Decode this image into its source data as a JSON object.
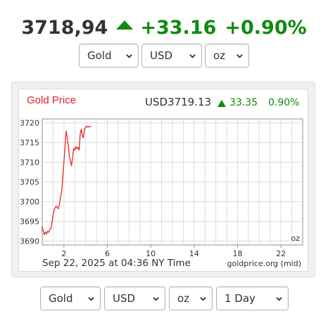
{
  "header": {
    "price": "3718,94",
    "change": "+33.16",
    "change_pct": "+0.90%",
    "direction_icon": "up-triangle-icon",
    "up_color": "#108a10"
  },
  "top_selectors": {
    "metal": "Gold",
    "currency": "USD",
    "unit": "oz"
  },
  "bottom_selectors": {
    "metal": "Gold",
    "currency": "USD",
    "unit": "oz",
    "range": "1 Day"
  },
  "chart_data": {
    "type": "line",
    "title": "Gold Price",
    "title_color": "#e02020",
    "quote": {
      "label": "USD3719.13",
      "change": "33.35",
      "change_pct": "0.90%"
    },
    "unit_label": "oz",
    "timestamp": "Sep 22, 2025 at 04:36 NY Time",
    "source": "goldprice.org (mid)",
    "line_color": "#e8282a",
    "grid": true,
    "xlim": [
      0,
      24
    ],
    "ylim": [
      3689,
      3721
    ],
    "x_ticks": [
      2,
      6,
      10,
      14,
      18,
      22
    ],
    "y_ticks": [
      3690,
      3695,
      3700,
      3705,
      3710,
      3715,
      3720
    ],
    "series": [
      {
        "x": [
          0.0,
          0.1,
          0.2,
          0.3,
          0.4,
          0.5,
          0.6,
          0.7,
          0.8,
          0.9,
          1.0,
          1.1,
          1.2,
          1.3,
          1.4,
          1.5,
          1.6,
          1.7,
          1.8,
          1.9,
          2.0,
          2.1,
          2.2,
          2.3,
          2.4,
          2.5,
          2.6,
          2.7,
          2.8,
          2.9,
          3.0,
          3.1,
          3.2,
          3.3,
          3.4,
          3.5,
          3.6,
          3.7,
          3.8,
          3.9,
          4.0,
          4.1,
          4.2,
          4.3,
          4.4,
          4.5
        ],
        "y": [
          3693.8,
          3692.4,
          3691.6,
          3692.3,
          3691.8,
          3692.5,
          3692.2,
          3692.9,
          3693.2,
          3694.8,
          3696.5,
          3697.9,
          3698.6,
          3698.9,
          3698.4,
          3698.2,
          3699.6,
          3701.3,
          3702.8,
          3706.5,
          3710.1,
          3713.8,
          3717.9,
          3716.4,
          3714.2,
          3711.6,
          3710.3,
          3709.1,
          3711.4,
          3713.5,
          3713.1,
          3714.0,
          3713.4,
          3713.8,
          3713.1,
          3717.3,
          3718.4,
          3716.8,
          3716.2,
          3718.6,
          3718.8,
          3719.2,
          3718.9,
          3719.1,
          3719.0,
          3719.13
        ]
      }
    ]
  }
}
